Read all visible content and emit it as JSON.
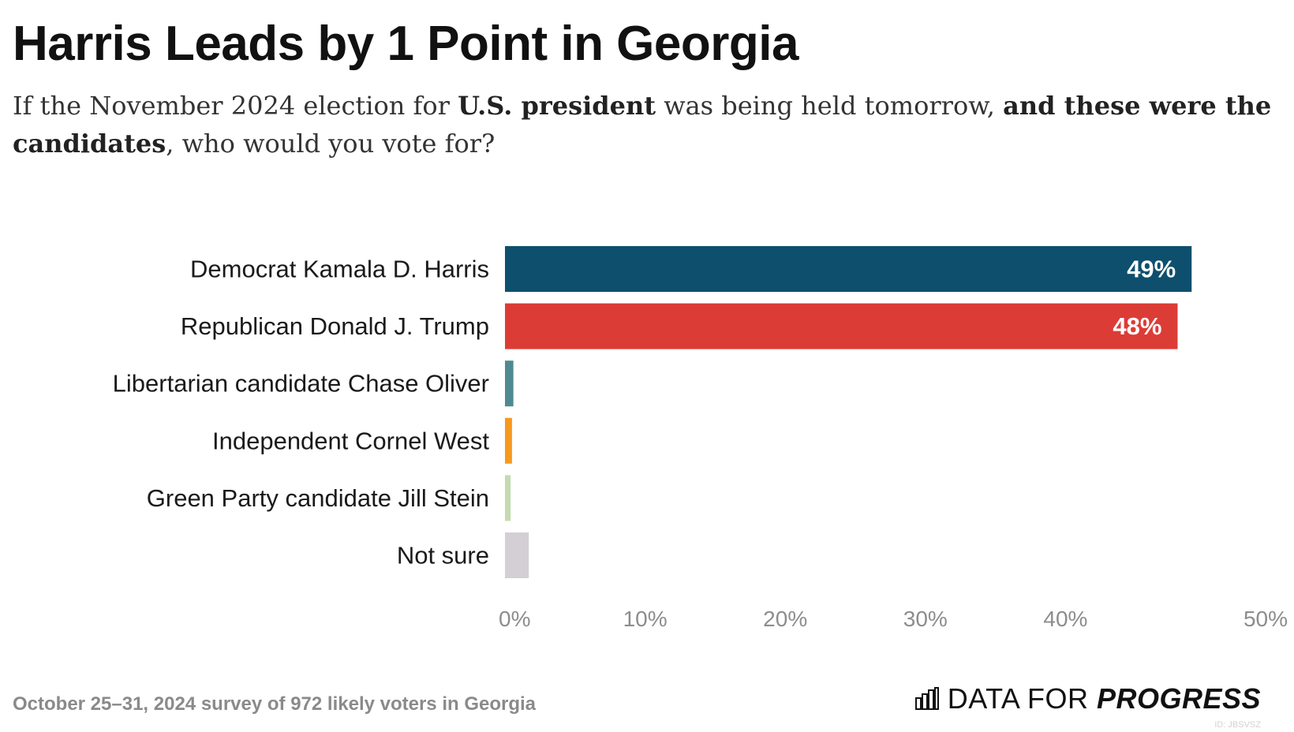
{
  "header": {
    "title": "Harris Leads by 1 Point in Georgia",
    "subtitle_parts": [
      {
        "text": "If the November 2024 election for ",
        "bold": false
      },
      {
        "text": "U.S. president",
        "bold": true
      },
      {
        "text": " was being held tomorrow, ",
        "bold": false
      },
      {
        "text": "and these were the candidates",
        "bold": true
      },
      {
        "text": ", who would you vote for?",
        "bold": false
      }
    ]
  },
  "chart_data": {
    "type": "bar",
    "orientation": "horizontal",
    "categories": [
      "Democrat Kamala D. Harris",
      "Republican Donald J. Trump",
      "Libertarian candidate Chase Oliver",
      "Independent Cornel West",
      "Green Party candidate Jill Stein",
      "Not sure"
    ],
    "values": [
      49,
      48,
      0.6,
      0.5,
      0.4,
      1.7
    ],
    "data_labels": [
      "49%",
      "48%",
      "",
      "",
      "",
      ""
    ],
    "colors": [
      "#0e4f6e",
      "#dc3c36",
      "#4e8a91",
      "#f7991e",
      "#c3dbb0",
      "#d3cfd4"
    ],
    "xlim": [
      0,
      50
    ],
    "x_ticks": [
      "0%",
      "10%",
      "20%",
      "30%",
      "40%",
      "50%"
    ],
    "grid": false,
    "legend": "none"
  },
  "footer": {
    "note": "October 25–31, 2024 survey of 972 likely voters in Georgia",
    "logo_light": "DATA FOR ",
    "logo_bold": "PROGRESS",
    "logo_icon": "bar-chart-icon",
    "chart_id": "ID: JBSVSZ"
  }
}
